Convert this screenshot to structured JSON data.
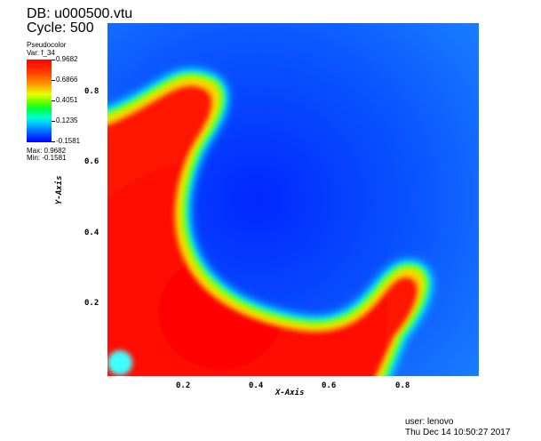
{
  "header": {
    "db_title": "DB: u000500.vtu",
    "cycle_label": "Cycle: 500"
  },
  "legend": {
    "title": "Pseudocolor",
    "var_label": "Var: f_34",
    "ticks": [
      "0.9682",
      "0.6866",
      "0.4051",
      "0.1235",
      "-0.1581"
    ],
    "max_label": "Max: 0.9682",
    "min_label": "Min: -0.1581",
    "colormap": [
      "#0000ff",
      "#00ffff",
      "#00ff00",
      "#ffff00",
      "#ff0000"
    ]
  },
  "axes": {
    "x_title": "X-Axis",
    "y_title": "Y-Axis",
    "x_ticks": [
      "0.2",
      "0.4",
      "0.6",
      "0.8"
    ],
    "y_ticks": [
      "0.8",
      "0.6",
      "0.4",
      "0.2"
    ]
  },
  "footer": {
    "user": "user: lenovo",
    "date": "Thu Dec 14 10:50:27 2017"
  }
}
